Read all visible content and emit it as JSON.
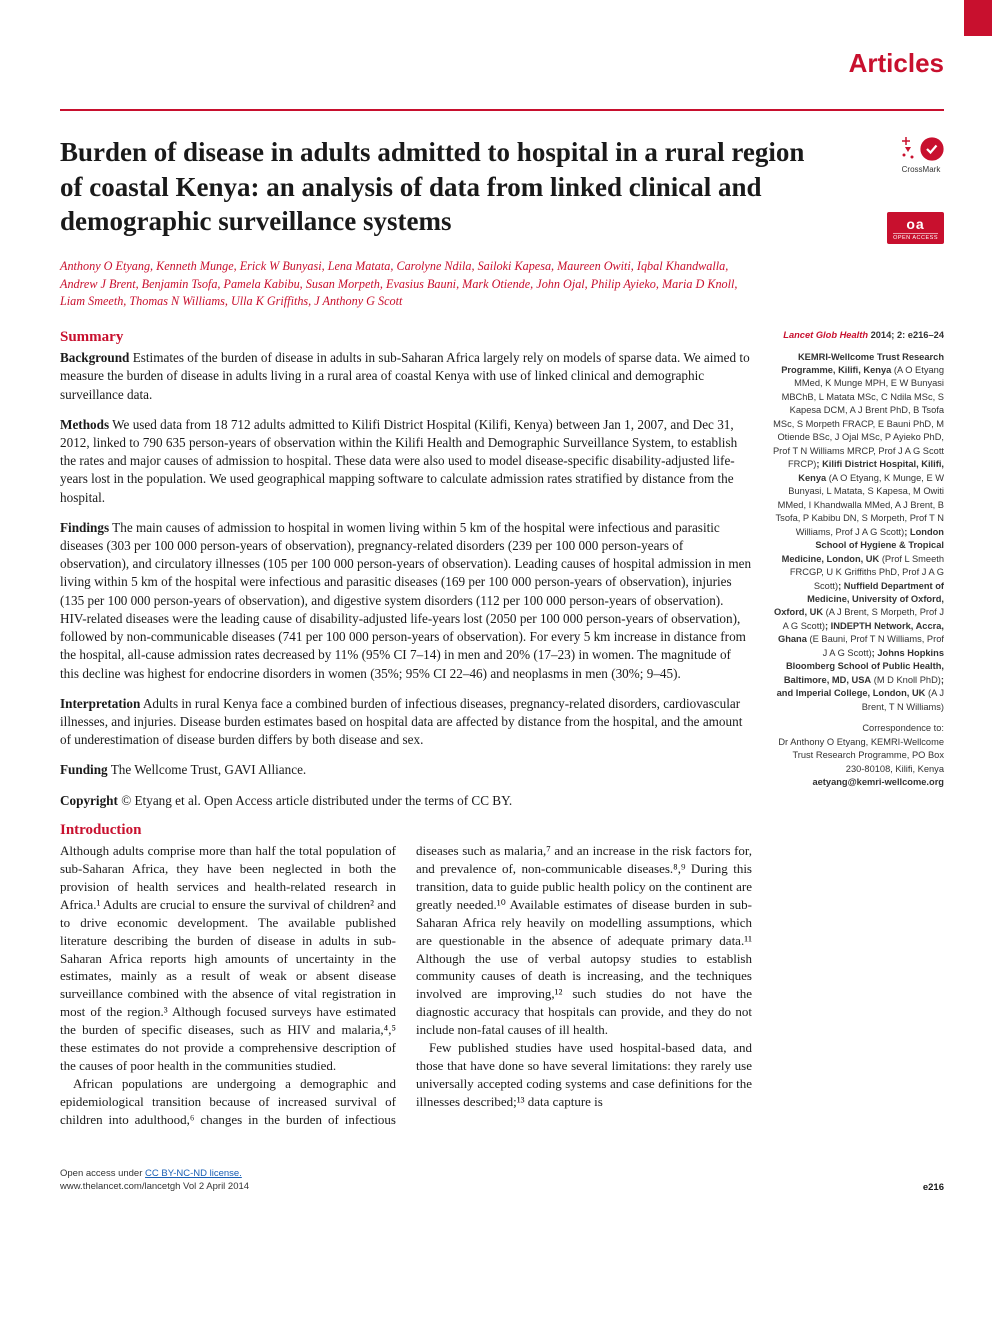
{
  "colors": {
    "brand_red": "#c8102e",
    "text": "#1a1a1a",
    "side_text": "#333333",
    "link": "#1a5fb4",
    "bg": "#ffffff"
  },
  "typography": {
    "section_label_size": 26,
    "title_size": 27,
    "authors_size": 12.2,
    "abstract_size": 13.2,
    "body_size": 13,
    "sidebar_size": 9.3,
    "footer_size": 9.5
  },
  "section_label": "Articles",
  "title": "Burden of disease in adults admitted to hospital in a rural region of coastal Kenya: an analysis of data from linked clinical and demographic surveillance systems",
  "authors": "Anthony O Etyang, Kenneth Munge, Erick W Bunyasi, Lena Matata, Carolyne Ndila, Sailoki Kapesa, Maureen Owiti, Iqbal Khandwalla, Andrew J Brent, Benjamin Tsofa, Pamela Kabibu, Susan Morpeth, Evasius Bauni, Mark Otiende, John Ojal, Philip Ayieko, Maria D Knoll, Liam Smeeth, Thomas N Williams, Ulla K Griffiths, J Anthony G Scott",
  "badges": {
    "crossmark_label": "CrossMark",
    "oa_text": "oa",
    "oa_sub": "OPEN ACCESS"
  },
  "summary_heading": "Summary",
  "abstract": {
    "background": {
      "label": "Background",
      "text": " Estimates of the burden of disease in adults in sub-Saharan Africa largely rely on models of sparse data. We aimed to measure the burden of disease in adults living in a rural area of coastal Kenya with use of linked clinical and demographic surveillance data."
    },
    "methods": {
      "label": "Methods",
      "text": " We used data from 18 712 adults admitted to Kilifi District Hospital (Kilifi, Kenya) between Jan 1, 2007, and Dec 31, 2012, linked to 790 635 person-years of observation within the Kilifi Health and Demographic Surveillance System, to establish the rates and major causes of admission to hospital. These data were also used to model disease-specific disability-adjusted life-years lost in the population. We used geographical mapping software to calculate admission rates stratified by distance from the hospital."
    },
    "findings": {
      "label": "Findings",
      "text": " The main causes of admission to hospital in women living within 5 km of the hospital were infectious and parasitic diseases (303 per 100 000 person-years of observation), pregnancy-related disorders (239 per 100 000 person-years of observation), and circulatory illnesses (105 per 100 000 person-years of observation). Leading causes of hospital admission in men living within 5 km of the hospital were infectious and parasitic diseases (169 per 100 000 person-years of observation), injuries (135 per 100 000 person-years of observation), and digestive system disorders (112 per 100 000 person-years of observation). HIV-related diseases were the leading cause of disability-adjusted life-years lost (2050 per 100 000 person-years of observation), followed by non-communicable diseases (741 per 100 000 person-years of observation). For every 5 km increase in distance from the hospital, all-cause admission rates decreased by 11% (95% CI 7–14) in men and 20% (17–23) in women. The magnitude of this decline was highest for endocrine disorders in women (35%; 95% CI 22–46) and neoplasms in men (30%; 9–45)."
    },
    "interpretation": {
      "label": "Interpretation",
      "text": " Adults in rural Kenya face a combined burden of infectious diseases, pregnancy-related disorders, cardiovascular illnesses, and injuries. Disease burden estimates based on hospital data are affected by distance from the hospital, and the amount of underestimation of disease burden differs by both disease and sex."
    },
    "funding": {
      "label": "Funding",
      "text": " The Wellcome Trust, GAVI Alliance."
    },
    "copyright": {
      "label": "Copyright",
      "text": " © Etyang et al. Open Access article distributed under the terms of CC BY."
    }
  },
  "intro_heading": "Introduction",
  "intro_paragraphs": [
    "Although adults comprise more than half the total population of sub-Saharan Africa, they have been neglected in both the provision of health services and health-related research in Africa.¹ Adults are crucial to ensure the survival of children² and to drive economic development. The available published literature describing the burden of disease in adults in sub-Saharan Africa reports high amounts of uncertainty in the estimates, mainly as a result of weak or absent disease surveillance combined with the absence of vital registration in most of the region.³ Although focused surveys have estimated the burden of specific diseases, such as HIV and malaria,⁴,⁵ these estimates do not provide a comprehensive description of the causes of poor health in the communities studied.",
    "African populations are undergoing a demographic and epidemiological transition because of increased survival of children into adulthood,⁶ changes in the burden of infectious diseases such as malaria,⁷ and an increase in the risk factors for, and prevalence of, non-communicable diseases.⁸,⁹ During this transition, data to guide public health policy on the continent are greatly needed.¹⁰ Available estimates of disease burden in sub-Saharan Africa rely heavily on modelling assumptions, which are questionable in the absence of adequate primary data.¹¹ Although the use of verbal autopsy studies to establish community causes of death is increasing, and the techniques involved are improving,¹² such studies do not have the diagnostic accuracy that hospitals can provide, and they do not include non-fatal causes of ill health.",
    "Few published studies have used hospital-based data, and those that have done so have several limitations: they rarely use universally accepted coding systems and case definitions for the illnesses described;¹³ data capture is"
  ],
  "sidebar": {
    "journal": "Lancet Glob Health",
    "year_vol": " 2014; 2: e216–24",
    "affiliations": [
      {
        "name": "KEMRI-Wellcome Trust Research Programme, Kilifi, Kenya",
        "people": " (A O Etyang MMed, K Munge MPH, E W Bunyasi MBChB, L Matata MSc, C Ndila MSc, S Kapesa DCM, A J Brent PhD, B Tsofa MSc, S Morpeth FRACP, E Bauni PhD, M Otiende BSc, J Ojal MSc, P Ayieko PhD, Prof T N Williams MRCP, Prof J A G Scott FRCP)"
      },
      {
        "name": "; Kilifi District Hospital, Kilifi, Kenya",
        "people": " (A O Etyang, K Munge, E W Bunyasi, L Matata, S Kapesa, M Owiti MMed, I Khandwalla MMed, A J Brent, B Tsofa, P Kabibu DN, S Morpeth, Prof T N Williams, Prof J A G Scott)"
      },
      {
        "name": "; London School of Hygiene & Tropical Medicine, London, UK",
        "people": " (Prof L Smeeth FRCGP, U K Griffiths PhD, Prof J A G Scott)"
      },
      {
        "name": "; Nuffield Department of Medicine, University of Oxford, Oxford, UK",
        "people": " (A J Brent, S Morpeth, Prof J A G Scott)"
      },
      {
        "name": "; INDEPTH Network, Accra, Ghana",
        "people": " (E Bauni, Prof T N Williams, Prof J A G Scott)"
      },
      {
        "name": "; Johns Hopkins Bloomberg School of Public Health, Baltimore, MD, USA",
        "people": " (M D Knoll PhD)"
      },
      {
        "name": "; and Imperial College, London, UK",
        "people": " (A J Brent, T N Williams)"
      }
    ],
    "correspondence": {
      "label": "Correspondence to:",
      "name": "Dr Anthony O Etyang, KEMRI-Wellcome Trust Research Programme, PO Box 230-80108, Kilifi, Kenya",
      "email": "aetyang@kemri-wellcome.org"
    }
  },
  "footer": {
    "license_prefix": "Open access under ",
    "license_link": "CC BY-NC-ND license.",
    "journal_line": "www.thelancet.com/lancetgh   Vol 2   April 2014",
    "page_number": "e216"
  }
}
